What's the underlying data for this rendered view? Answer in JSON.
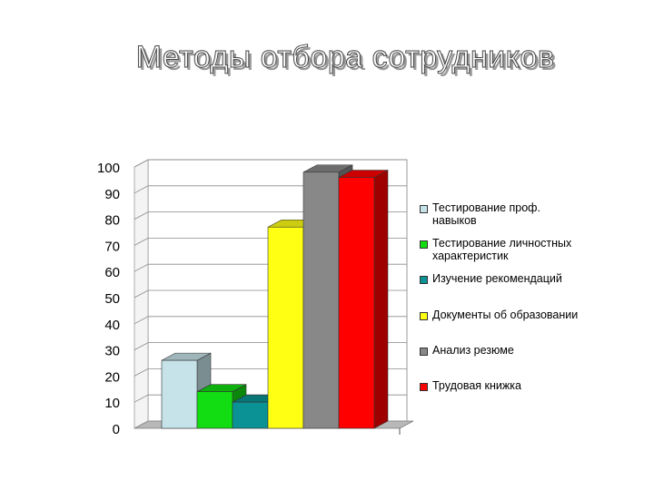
{
  "slide": {
    "title": "Методы отбора сотрудников"
  },
  "chart_data": {
    "type": "bar",
    "title": "",
    "xlabel": "",
    "ylabel": "",
    "ylim": [
      0,
      100
    ],
    "y_ticks": [
      "0",
      "10",
      "20",
      "30",
      "40",
      "50",
      "60",
      "70",
      "80",
      "90",
      "100"
    ],
    "grid": true,
    "three_d": true,
    "legend_position": "right",
    "series": [
      {
        "name": "Тестирование проф. навыков",
        "values": [
          26
        ],
        "color": "#c5e3e8"
      },
      {
        "name": "Тестирование личностных характеристик",
        "values": [
          14
        ],
        "color": "#12dc12"
      },
      {
        "name": "Изучение рекомендаций",
        "values": [
          10
        ],
        "color": "#0a9294"
      },
      {
        "name": "Документы об образовании",
        "values": [
          77
        ],
        "color": "#ffff14"
      },
      {
        "name": "Анализ резюме",
        "values": [
          98
        ],
        "color": "#888888"
      },
      {
        "name": "Трудовая книжка",
        "values": [
          96
        ],
        "color": "#ff0000"
      }
    ]
  },
  "legend": {
    "items": [
      {
        "line1": "Тестирование проф.",
        "line2": "навыков"
      },
      {
        "line1": "Тестирование личностных",
        "line2": "характеристик"
      },
      {
        "line1": "Изучение рекомендаций",
        "line2": ""
      },
      {
        "line1": "Документы об образовании",
        "line2": ""
      },
      {
        "line1": "Анализ резюме",
        "line2": ""
      },
      {
        "line1": "Трудовая книжка",
        "line2": ""
      }
    ]
  }
}
